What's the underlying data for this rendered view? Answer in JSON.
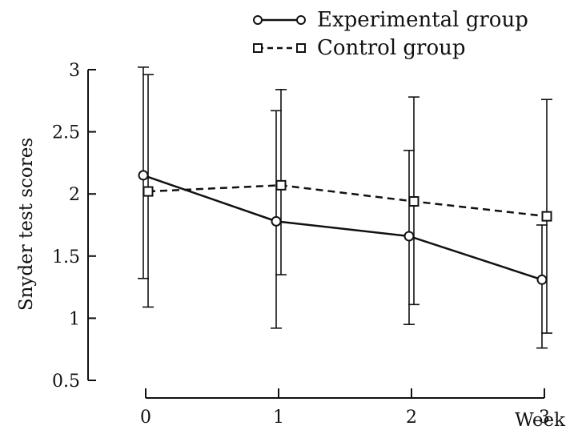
{
  "chart_data": {
    "type": "line",
    "xlabel": "Week",
    "ylabel": "Snyder test scores",
    "x": [
      0,
      1,
      2,
      3
    ],
    "xlim": [
      0,
      3
    ],
    "ylim": [
      0.5,
      3
    ],
    "x_ticks": [
      "0",
      "1",
      "2",
      "3"
    ],
    "y_ticks": [
      "0.5",
      "1",
      "1.5",
      "2",
      "2.5",
      "3"
    ],
    "y_tick_values": [
      0.5,
      1,
      1.5,
      2,
      2.5,
      3
    ],
    "grid": false,
    "legend_position": "top-right",
    "series": [
      {
        "name": "Experimental group",
        "marker": "circle",
        "line_style": "solid",
        "values": [
          2.15,
          1.78,
          1.66,
          1.31
        ],
        "error_low": [
          1.32,
          0.92,
          0.95,
          0.76
        ],
        "error_high": [
          3.02,
          2.67,
          2.35,
          1.75
        ]
      },
      {
        "name": "Control group",
        "marker": "square",
        "line_style": "dashed",
        "values": [
          2.02,
          2.07,
          1.94,
          1.82
        ],
        "error_low": [
          1.09,
          1.35,
          1.11,
          0.88
        ],
        "error_high": [
          2.96,
          2.84,
          2.78,
          2.76
        ]
      }
    ]
  }
}
